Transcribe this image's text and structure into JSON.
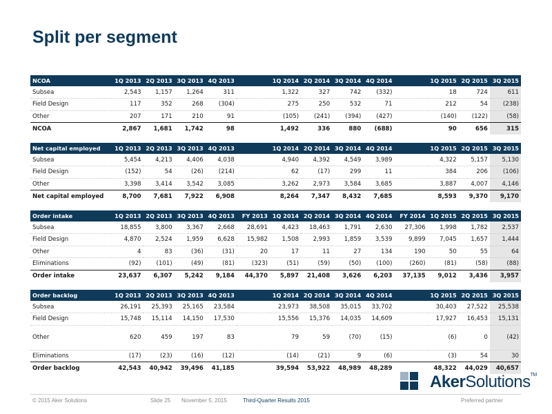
{
  "slide": {
    "title": "Split per segment"
  },
  "tables": {
    "ncoa": {
      "headers": [
        "NCOA",
        "1Q 2013",
        "2Q 2013",
        "3Q 2013",
        "4Q 2013",
        "",
        "1Q 2014",
        "2Q 2014",
        "3Q 2014",
        "4Q 2014",
        "",
        "1Q 2015",
        "2Q 2015",
        "3Q 2015"
      ],
      "rows": [
        [
          "Subsea",
          "2,543",
          "1,157",
          "1,264",
          "311",
          "",
          "1,322",
          "327",
          "742",
          "(332)",
          "",
          "18",
          "724",
          "611"
        ],
        [
          "Field Design",
          "117",
          "352",
          "268",
          "(304)",
          "",
          "275",
          "250",
          "532",
          "71",
          "",
          "212",
          "54",
          "(238)"
        ],
        [
          "Other",
          "207",
          "171",
          "210",
          "91",
          "",
          "(105)",
          "(241)",
          "(394)",
          "(427)",
          "",
          "(140)",
          "(122)",
          "(58)"
        ],
        [
          "NCOA",
          "2,867",
          "1,681",
          "1,742",
          "98",
          "",
          "1,492",
          "336",
          "880",
          "(688)",
          "",
          "90",
          "656",
          "315"
        ]
      ]
    },
    "net_capital_employed": {
      "headers": [
        "Net capital employed",
        "1Q 2013",
        "2Q 2013",
        "3Q 2013",
        "4Q 2013",
        "",
        "1Q 2014",
        "2Q 2014",
        "3Q 2014",
        "4Q 2014",
        "",
        "1Q 2015",
        "2Q 2015",
        "3Q 2015"
      ],
      "rows": [
        [
          "Subsea",
          "5,454",
          "4,213",
          "4,406",
          "4,038",
          "",
          "4,940",
          "4,392",
          "4,549",
          "3,989",
          "",
          "4,322",
          "5,157",
          "5,130"
        ],
        [
          "Field Design",
          "(152)",
          "54",
          "(26)",
          "(214)",
          "",
          "62",
          "(17)",
          "299",
          "11",
          "",
          "384",
          "206",
          "(106)"
        ],
        [
          "Other",
          "3,398",
          "3,414",
          "3,542",
          "3,085",
          "",
          "3,262",
          "2,973",
          "3,584",
          "3,685",
          "",
          "3,887",
          "4,007",
          "4,146"
        ],
        [
          "Net capital employed",
          "8,700",
          "7,681",
          "7,922",
          "6,908",
          "",
          "8,264",
          "7,347",
          "8,432",
          "7,685",
          "",
          "8,593",
          "9,370",
          "9,170"
        ]
      ]
    },
    "order_intake": {
      "headers": [
        "Order intake",
        "1Q 2013",
        "2Q 2013",
        "3Q 2013",
        "4Q 2013",
        "FY 2013",
        "1Q 2014",
        "2Q 2014",
        "3Q 2014",
        "4Q 2014",
        "FY 2014",
        "1Q 2015",
        "2Q 2015",
        "3Q 2015"
      ],
      "rows": [
        [
          "Subsea",
          "18,855",
          "3,800",
          "3,367",
          "2,668",
          "28,691",
          "4,423",
          "18,463",
          "1,791",
          "2,630",
          "27,306",
          "1,998",
          "1,782",
          "2,537"
        ],
        [
          "Field Design",
          "4,870",
          "2,524",
          "1,959",
          "6,628",
          "15,982",
          "1,508",
          "2,993",
          "1,859",
          "3,539",
          "9,899",
          "7,045",
          "1,657",
          "1,444"
        ],
        [
          "Other",
          "4",
          "83",
          "(36)",
          "(31)",
          "20",
          "17",
          "11",
          "27",
          "134",
          "190",
          "50",
          "55",
          "64"
        ],
        [
          "Eliminations",
          "(92)",
          "(101)",
          "(49)",
          "(81)",
          "(323)",
          "(51)",
          "(59)",
          "(50)",
          "(100)",
          "(260)",
          "(81)",
          "(58)",
          "(88)"
        ],
        [
          "Order intake",
          "23,637",
          "6,307",
          "5,242",
          "9,184",
          "44,370",
          "5,897",
          "21,408",
          "3,626",
          "6,203",
          "37,135",
          "9,012",
          "3,436",
          "3,957"
        ]
      ]
    },
    "order_backlog": {
      "headers": [
        "Order backlog",
        "1Q 2013",
        "2Q 2013",
        "3Q 2013",
        "4Q 2013",
        "",
        "1Q 2014",
        "2Q 2014",
        "3Q 2014",
        "4Q 2014",
        "",
        "1Q 2015",
        "2Q 2015",
        "3Q 2015"
      ],
      "rows": [
        [
          "Subsea",
          "26,191",
          "25,393",
          "25,165",
          "23,584",
          "",
          "23,973",
          "38,508",
          "35,015",
          "33,702",
          "",
          "30,403",
          "27,522",
          "25,538"
        ],
        [
          "Field Design",
          "15,748",
          "15,114",
          "14,150",
          "17,530",
          "",
          "15,556",
          "15,376",
          "14,035",
          "14,609",
          "",
          "17,927",
          "16,453",
          "15,131"
        ],
        [
          "Other",
          "620",
          "459",
          "197",
          "83",
          "",
          "79",
          "59",
          "(70)",
          "(15)",
          "",
          "(6)",
          "0",
          "(42)"
        ],
        [
          "Eliminations",
          "(17)",
          "(23)",
          "(16)",
          "(12)",
          "",
          "(14)",
          "(21)",
          "9",
          "(6)",
          "",
          "(3)",
          "54",
          "30"
        ],
        [
          "Order backlog",
          "42,543",
          "40,942",
          "39,496",
          "41,185",
          "",
          "39,594",
          "53,922",
          "48,989",
          "48,289",
          "",
          "48,322",
          "44,029",
          "40,657"
        ]
      ]
    }
  },
  "logo": {
    "word1": "Aker",
    "word2": "Solutions",
    "tm": "TM",
    "primary_color": "#0f3a5a",
    "accent_color": "#9fb3c8"
  },
  "footer": {
    "copyright": "© 2015 Aker Solutions",
    "slide": "Slide 25",
    "date": "November 5, 2015",
    "event": "Third-Quarter Results 2015",
    "partner": "Preferred partner"
  },
  "colors": {
    "header_bg": "#0f3a5a",
    "highlight_col": "#e6e6e6"
  }
}
